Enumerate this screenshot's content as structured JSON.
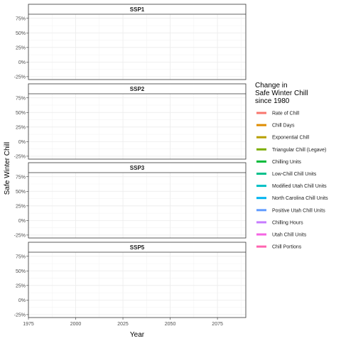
{
  "chart_data": {
    "type": "line",
    "facets": [
      "SSP1",
      "SSP2",
      "SSP3",
      "SSP5"
    ],
    "xlabel": "Year",
    "ylabel": "Safe Winter Chill",
    "xlim": [
      1975,
      2090
    ],
    "ylim": [
      -0.3,
      0.82
    ],
    "x_ticks": [
      1975,
      2000,
      2025,
      2050,
      2075
    ],
    "x_tick_labels": [
      "1975",
      "2000",
      "2025",
      "2050",
      "2075"
    ],
    "y_ticks": [
      -0.25,
      0,
      0.25,
      0.5,
      0.75
    ],
    "y_tick_labels": [
      "-25%",
      "0%",
      "25%",
      "50%",
      "75%"
    ],
    "grid": true,
    "legend": {
      "title_lines": [
        "Change in",
        "Safe Winter Chill",
        "since 1980"
      ],
      "placement": "right"
    },
    "series": [
      {
        "name": "Rate of Chill",
        "color": "#F8766D",
        "values": []
      },
      {
        "name": "Chill Days",
        "color": "#DE8C00",
        "values": []
      },
      {
        "name": "Exponential Chill",
        "color": "#B79F00",
        "values": []
      },
      {
        "name": "Triangular Chill (Legave)",
        "color": "#7CAE00",
        "values": []
      },
      {
        "name": "Chilling Units",
        "color": "#00BA38",
        "values": []
      },
      {
        "name": "Low-Chill Chill Units",
        "color": "#00C08B",
        "values": []
      },
      {
        "name": "Modified Utah Chill Units",
        "color": "#00BFC4",
        "values": []
      },
      {
        "name": "North Carolina Chill Units",
        "color": "#00B4F0",
        "values": []
      },
      {
        "name": "Positive Utah Chill Units",
        "color": "#619CFF",
        "values": []
      },
      {
        "name": "Chilling Hours",
        "color": "#C77CFF",
        "values": []
      },
      {
        "name": "Utah Chill Units",
        "color": "#F564E3",
        "values": []
      },
      {
        "name": "Chill Portions",
        "color": "#FF64B0",
        "values": []
      }
    ]
  }
}
